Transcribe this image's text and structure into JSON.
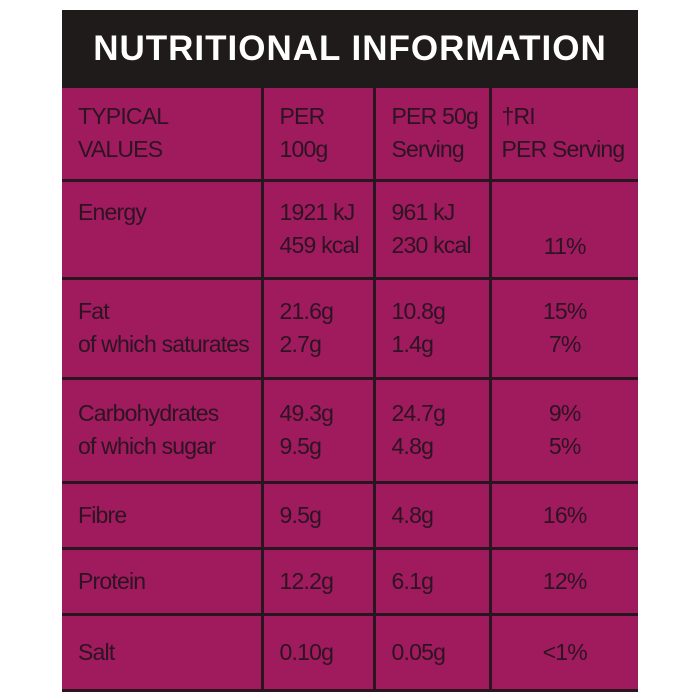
{
  "header": {
    "title": "NUTRITIONAL INFORMATION"
  },
  "table": {
    "columns": [
      [
        "TYPICAL",
        "VALUES"
      ],
      [
        "PER",
        "100g"
      ],
      [
        "PER 50g",
        "Serving"
      ],
      [
        "†RI",
        "PER Serving"
      ]
    ],
    "rows": [
      [
        [
          "Energy"
        ],
        [
          "1921 kJ",
          "459 kcal"
        ],
        [
          "961 kJ",
          "230 kcal"
        ],
        [
          "11%"
        ]
      ],
      [
        [
          "Fat",
          "of which saturates"
        ],
        [
          "21.6g",
          "2.7g"
        ],
        [
          "10.8g",
          "1.4g"
        ],
        [
          "15%",
          "7%"
        ]
      ],
      [
        [
          "Carbohydrates",
          "of which sugar"
        ],
        [
          "49.3g",
          "9.5g"
        ],
        [
          "24.7g",
          "4.8g"
        ],
        [
          "9%",
          "5%"
        ]
      ],
      [
        [
          "Fibre"
        ],
        [
          "9.5g"
        ],
        [
          "4.8g"
        ],
        [
          "16%"
        ]
      ],
      [
        [
          "Protein"
        ],
        [
          "12.2g"
        ],
        [
          "6.1g"
        ],
        [
          "12%"
        ]
      ],
      [
        [
          "Salt"
        ],
        [
          "0.10g"
        ],
        [
          "0.05g"
        ],
        [
          "<1%"
        ]
      ]
    ]
  }
}
